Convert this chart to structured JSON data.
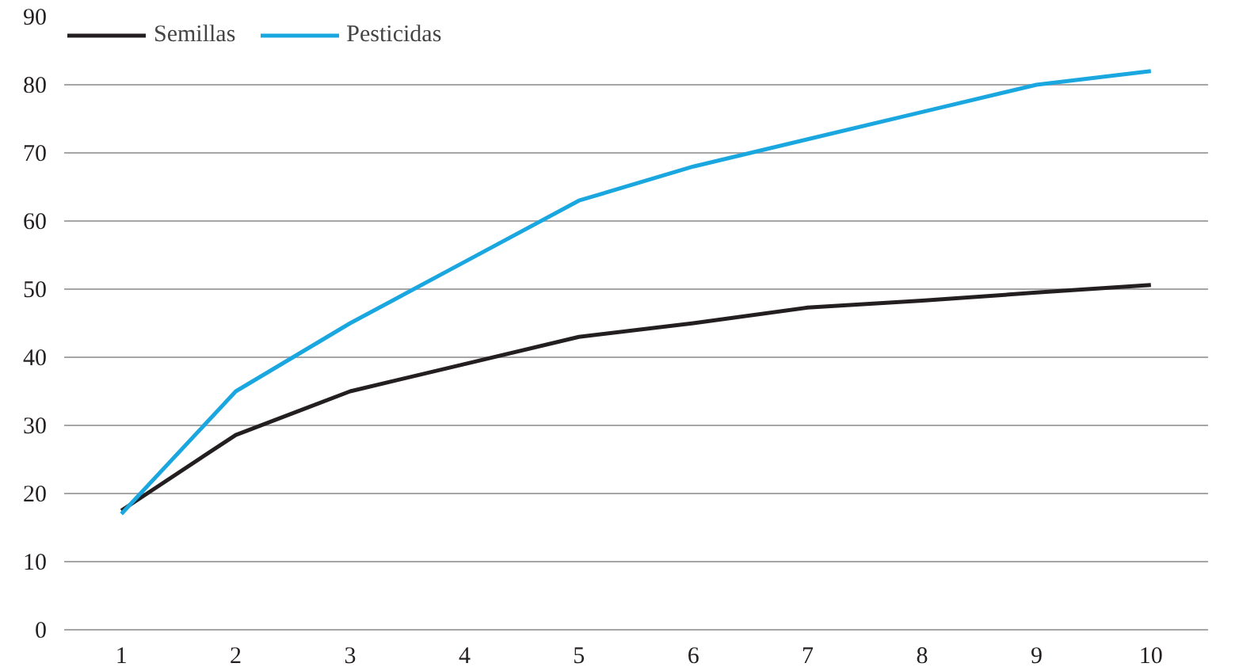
{
  "chart_data": {
    "type": "line",
    "x": [
      1,
      2,
      3,
      4,
      5,
      6,
      7,
      8,
      9,
      10
    ],
    "xlim": [
      0.5,
      10.5
    ],
    "xticks": [
      1,
      2,
      3,
      4,
      5,
      6,
      7,
      8,
      9,
      10
    ],
    "ylim": [
      0,
      90
    ],
    "yticks": [
      0,
      10,
      20,
      30,
      40,
      50,
      60,
      70,
      80,
      90
    ],
    "grid": "y",
    "legend": "top left",
    "marker": "none",
    "line_style": "solid",
    "series": [
      {
        "name": "Semillas",
        "color": "#231f20",
        "values": [
          17.5,
          28.6,
          35,
          39,
          43,
          45,
          47.3,
          48.3,
          49.5,
          50.6
        ]
      },
      {
        "name": "Pesticidas",
        "color": "#1aa7e0",
        "values": [
          17,
          35,
          45,
          54,
          63,
          68,
          72,
          76,
          80,
          82
        ]
      }
    ]
  }
}
